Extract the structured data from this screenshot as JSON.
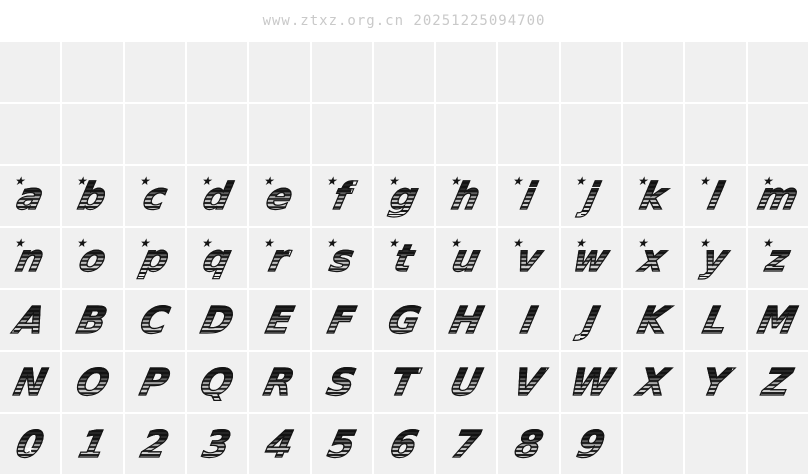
{
  "watermark": "www.ztxz.org.cn 20251225094700",
  "colors": {
    "page_bg": "#ffffff",
    "cell_bg": "#f0f0f0",
    "watermark_text": "#c9c9c9",
    "glyph_dark": "#161616",
    "glyph_light": "#e9e9e9"
  },
  "star_glyph": "★",
  "grid": {
    "columns": 13,
    "rows": [
      {
        "name": "empty-row-1",
        "star": false,
        "cells": [
          "",
          "",
          "",
          "",
          "",
          "",
          "",
          "",
          "",
          "",
          "",
          "",
          ""
        ]
      },
      {
        "name": "empty-row-2",
        "star": false,
        "cells": [
          "",
          "",
          "",
          "",
          "",
          "",
          "",
          "",
          "",
          "",
          "",
          "",
          ""
        ]
      },
      {
        "name": "lowercase-a-m",
        "star": true,
        "cells": [
          "a",
          "b",
          "c",
          "d",
          "e",
          "f",
          "g",
          "h",
          "i",
          "j",
          "k",
          "l",
          "m"
        ]
      },
      {
        "name": "lowercase-n-z",
        "star": true,
        "cells": [
          "n",
          "o",
          "p",
          "q",
          "r",
          "s",
          "t",
          "u",
          "v",
          "w",
          "x",
          "y",
          "z"
        ]
      },
      {
        "name": "uppercase-a-m",
        "star": false,
        "cells": [
          "A",
          "B",
          "C",
          "D",
          "E",
          "F",
          "G",
          "H",
          "I",
          "J",
          "K",
          "L",
          "M"
        ]
      },
      {
        "name": "uppercase-n-z",
        "star": false,
        "cells": [
          "N",
          "O",
          "P",
          "Q",
          "R",
          "S",
          "T",
          "U",
          "V",
          "W",
          "X",
          "Y",
          "Z"
        ]
      },
      {
        "name": "digits",
        "star": false,
        "zero_star": true,
        "cells": [
          "0",
          "1",
          "2",
          "3",
          "4",
          "5",
          "6",
          "7",
          "8",
          "9",
          "",
          "",
          ""
        ]
      }
    ]
  }
}
